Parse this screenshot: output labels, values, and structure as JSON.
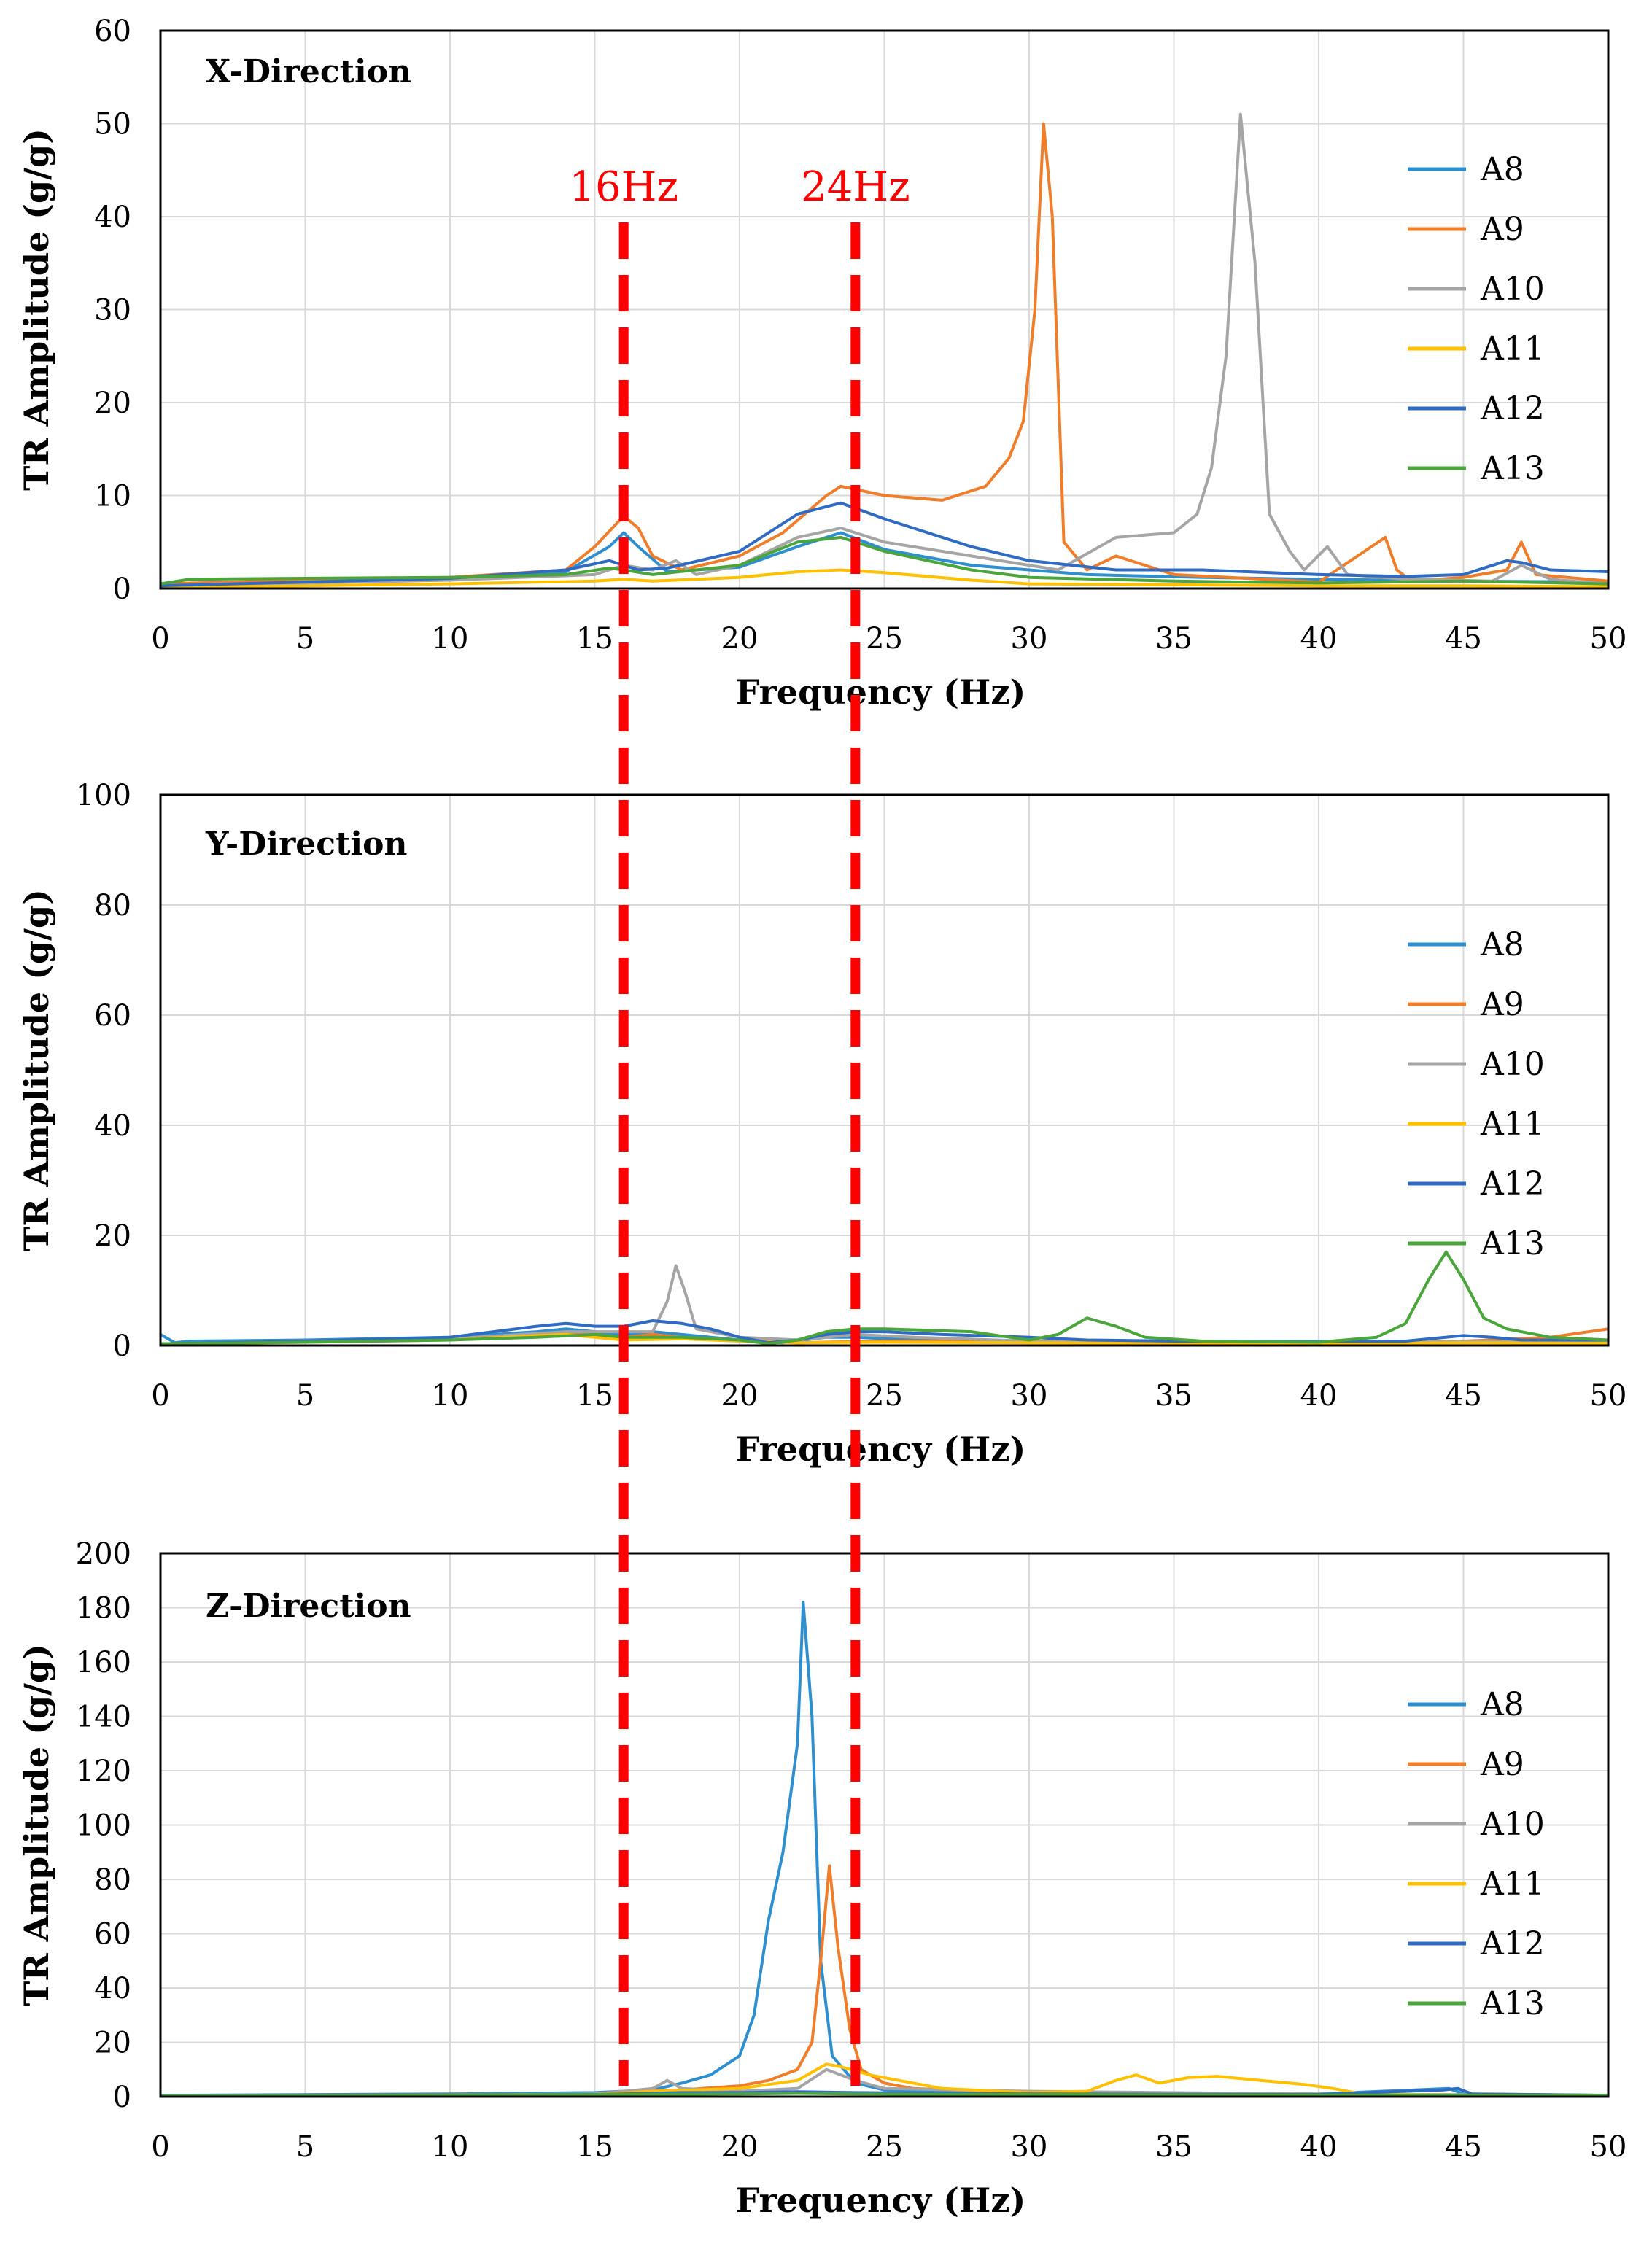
{
  "colors": {
    "A8": "#2e8fd0",
    "A9": "#f07d2a",
    "A10": "#a5a5a5",
    "A11": "#ffc000",
    "A12": "#2f6bc3",
    "A13": "#4aa53a",
    "marker": "#ff0000",
    "grid": "#d9d9d9"
  },
  "markers": [
    {
      "x": 16,
      "label": "16Hz"
    },
    {
      "x": 24,
      "label": "24Hz"
    }
  ],
  "chart_data": [
    {
      "type": "line",
      "title": "X-Direction",
      "xlabel": "Frequency (Hz)",
      "ylabel": "TR Amplitude (g/g)",
      "xlim": [
        0,
        50
      ],
      "ylim": [
        0,
        60
      ],
      "xticks": [
        0,
        5,
        10,
        15,
        20,
        25,
        30,
        35,
        40,
        45,
        50
      ],
      "yticks": [
        0,
        10,
        20,
        30,
        40,
        50,
        60
      ],
      "grid": true,
      "legend": "right",
      "series": [
        {
          "name": "A8",
          "x": [
            0,
            5,
            10,
            14,
            15.5,
            16,
            16.5,
            17.5,
            20,
            22,
            23.5,
            25,
            28,
            32,
            36,
            40,
            45,
            50
          ],
          "y": [
            0.2,
            0.6,
            1.0,
            1.8,
            4.5,
            6,
            4.5,
            1.8,
            2.3,
            4.5,
            6,
            4.2,
            2.5,
            1.5,
            1.2,
            1.0,
            0.8,
            0.7
          ]
        },
        {
          "name": "A9",
          "x": [
            0,
            5,
            10,
            14,
            15,
            16,
            16.5,
            17,
            18,
            20,
            21.5,
            23,
            23.5,
            25,
            27,
            28.5,
            29.3,
            29.8,
            30.2,
            30.5,
            30.8,
            31.2,
            32,
            33,
            35,
            40,
            42.3,
            42.7,
            43.2,
            45,
            46.5,
            47,
            47.5,
            50
          ],
          "y": [
            0.5,
            0.9,
            1.2,
            2.0,
            4.5,
            7.8,
            6.5,
            3.5,
            2.0,
            3.5,
            6.0,
            10.0,
            11.0,
            10.0,
            9.5,
            11.0,
            14.0,
            18.0,
            30.0,
            50.0,
            40.0,
            5.0,
            2.0,
            3.5,
            1.5,
            0.7,
            5.5,
            2.0,
            0.8,
            1.2,
            2.0,
            5.0,
            1.5,
            0.8
          ]
        },
        {
          "name": "A10",
          "x": [
            0,
            5,
            10,
            15,
            16,
            17,
            17.8,
            18.5,
            20,
            22,
            23.5,
            25,
            28,
            31,
            33,
            35,
            35.8,
            36.3,
            36.8,
            37.3,
            37.8,
            38.3,
            39,
            39.5,
            40.3,
            41,
            43,
            46,
            47,
            48,
            50
          ],
          "y": [
            0.3,
            0.6,
            0.9,
            1.5,
            2.5,
            2.0,
            3.0,
            1.5,
            2.5,
            5.5,
            6.5,
            5.0,
            3.5,
            2.0,
            5.5,
            6.0,
            8.0,
            13.0,
            25.0,
            51.0,
            35.0,
            8.0,
            4.0,
            2.0,
            4.5,
            1.5,
            1.0,
            0.8,
            2.5,
            1.0,
            0.5
          ]
        },
        {
          "name": "A11",
          "x": [
            0,
            5,
            10,
            15,
            16,
            17,
            20,
            22,
            23.5,
            25,
            28,
            30,
            35,
            40,
            45,
            50
          ],
          "y": [
            0.1,
            0.3,
            0.5,
            0.8,
            1.0,
            0.8,
            1.2,
            1.8,
            2.0,
            1.7,
            0.9,
            0.5,
            0.4,
            0.3,
            0.3,
            0.2
          ]
        },
        {
          "name": "A12",
          "x": [
            0,
            5,
            10,
            14,
            15.5,
            16,
            16.5,
            17.5,
            20,
            22,
            23.5,
            25,
            28,
            30,
            33,
            36,
            40,
            43,
            45,
            46.5,
            47,
            48,
            50
          ],
          "y": [
            0.3,
            0.7,
            1.1,
            2.0,
            3.0,
            2.5,
            2.0,
            2.2,
            4.0,
            8.0,
            9.2,
            7.5,
            4.5,
            3.0,
            2.0,
            2.0,
            1.5,
            1.3,
            1.5,
            3.0,
            2.8,
            2.0,
            1.8
          ]
        },
        {
          "name": "A13",
          "x": [
            0,
            1,
            5,
            10,
            14,
            15.5,
            16,
            17,
            20,
            22,
            23.5,
            25,
            28,
            30,
            35,
            40,
            45,
            50
          ],
          "y": [
            0.5,
            1.0,
            1.1,
            1.2,
            1.5,
            2.2,
            2.0,
            1.5,
            2.5,
            5.0,
            5.5,
            4.0,
            2.0,
            1.2,
            0.8,
            0.6,
            0.8,
            0.5
          ]
        }
      ]
    },
    {
      "type": "line",
      "title": "Y-Direction",
      "xlabel": "Frequency (Hz)",
      "ylabel": "TR Amplitude (g/g)",
      "xlim": [
        0,
        50
      ],
      "ylim": [
        0,
        100
      ],
      "xticks": [
        0,
        5,
        10,
        15,
        20,
        25,
        30,
        35,
        40,
        45,
        50
      ],
      "yticks": [
        0,
        20,
        40,
        60,
        80,
        100
      ],
      "grid": true,
      "legend": "right",
      "series": [
        {
          "name": "A8",
          "x": [
            0,
            0.5,
            1,
            5,
            10,
            13,
            14,
            15,
            16,
            17,
            18,
            20,
            21.5,
            23,
            24,
            26,
            30,
            35,
            40,
            45,
            50
          ],
          "y": [
            2.0,
            0.5,
            0.8,
            1.0,
            1.5,
            2.5,
            3.0,
            2.5,
            2.0,
            2.5,
            2.0,
            1.0,
            0.5,
            1.5,
            1.5,
            1.0,
            0.8,
            0.6,
            0.6,
            0.8,
            0.8
          ]
        },
        {
          "name": "A9",
          "x": [
            0,
            5,
            10,
            13,
            14,
            15,
            16,
            17,
            18,
            20,
            22,
            25,
            30,
            35,
            40,
            45,
            48,
            50
          ],
          "y": [
            0.3,
            0.8,
            1.2,
            2.0,
            2.5,
            2.0,
            1.5,
            2.0,
            1.5,
            1.0,
            0.5,
            0.8,
            0.8,
            0.6,
            0.6,
            0.8,
            1.5,
            3.0
          ]
        },
        {
          "name": "A10",
          "x": [
            0,
            5,
            10,
            14,
            16,
            17,
            17.5,
            17.8,
            18.1,
            18.5,
            20,
            22,
            24,
            26,
            30,
            35,
            40,
            45,
            50
          ],
          "y": [
            0.3,
            0.8,
            1.2,
            2.5,
            2.5,
            2.5,
            8.0,
            14.5,
            10.0,
            3.0,
            1.5,
            1.0,
            2.0,
            1.5,
            0.8,
            0.6,
            0.6,
            0.8,
            0.6
          ]
        },
        {
          "name": "A11",
          "x": [
            0,
            5,
            10,
            13,
            14,
            15,
            16,
            18,
            20,
            22,
            25,
            30,
            35,
            40,
            45,
            50
          ],
          "y": [
            0.2,
            0.6,
            1.0,
            1.8,
            2.0,
            1.5,
            1.0,
            1.2,
            0.8,
            0.5,
            0.6,
            0.5,
            0.4,
            0.4,
            0.5,
            0.4
          ]
        },
        {
          "name": "A12",
          "x": [
            0,
            5,
            10,
            13,
            14,
            15,
            16,
            17,
            18,
            19,
            20,
            21,
            22,
            23,
            24,
            25,
            27,
            30,
            32,
            35,
            40,
            43,
            45,
            46,
            47,
            50
          ],
          "y": [
            0.3,
            0.8,
            1.5,
            3.5,
            4.0,
            3.5,
            3.5,
            4.5,
            4.0,
            3.0,
            1.5,
            0.5,
            1.0,
            2.0,
            2.5,
            2.5,
            2.0,
            1.5,
            1.0,
            0.8,
            0.8,
            0.8,
            1.8,
            1.5,
            1.0,
            1.0
          ]
        },
        {
          "name": "A13",
          "x": [
            0,
            5,
            10,
            13,
            15,
            16,
            18,
            20,
            21,
            22,
            23,
            24,
            25,
            28,
            30,
            31,
            32,
            33,
            34,
            36,
            40,
            42,
            43,
            43.8,
            44.4,
            45,
            45.7,
            46.5,
            48,
            50
          ],
          "y": [
            0.3,
            0.6,
            1.0,
            1.5,
            2.0,
            1.5,
            1.5,
            1.0,
            0.3,
            1.0,
            2.5,
            3.0,
            3.0,
            2.5,
            1.0,
            2.0,
            5.0,
            3.5,
            1.5,
            0.8,
            0.6,
            1.5,
            4.0,
            12.0,
            17.0,
            12.0,
            5.0,
            3.0,
            1.5,
            1.0
          ]
        }
      ]
    },
    {
      "type": "line",
      "title": "Z-Direction",
      "xlabel": "Frequency (Hz)",
      "ylabel": "TR Amplitude (g/g)",
      "xlim": [
        0,
        50
      ],
      "ylim": [
        0,
        200
      ],
      "xticks": [
        0,
        5,
        10,
        15,
        20,
        25,
        30,
        35,
        40,
        45,
        50
      ],
      "yticks": [
        0,
        20,
        40,
        60,
        80,
        100,
        120,
        140,
        160,
        180,
        200
      ],
      "grid": true,
      "legend": "right",
      "series": [
        {
          "name": "A8",
          "x": [
            0,
            10,
            15,
            17,
            18,
            19,
            20,
            20.5,
            21,
            21.5,
            22,
            22.2,
            22.5,
            22.8,
            23.2,
            24,
            25,
            30,
            40,
            44.5,
            45,
            50
          ],
          "y": [
            0.5,
            1.0,
            1.5,
            2.5,
            5.0,
            8.0,
            15.0,
            30.0,
            65.0,
            90.0,
            130.0,
            182.0,
            140.0,
            50.0,
            15.0,
            5.0,
            2.5,
            1.5,
            1.0,
            3.0,
            1.0,
            0.5
          ]
        },
        {
          "name": "A9",
          "x": [
            0,
            10,
            15,
            16,
            18,
            20,
            21,
            22,
            22.5,
            22.8,
            23.1,
            23.4,
            23.8,
            24.2,
            25,
            26,
            30,
            40,
            50
          ],
          "y": [
            0.3,
            0.6,
            1.0,
            2.0,
            2.5,
            4.0,
            6.0,
            10.0,
            20.0,
            50.0,
            85.0,
            55.0,
            25.0,
            10.0,
            5.0,
            3.0,
            1.5,
            0.8,
            0.5
          ]
        },
        {
          "name": "A10",
          "x": [
            0,
            10,
            15,
            16,
            17,
            17.5,
            18,
            20,
            22,
            23,
            24,
            25,
            30,
            40,
            50
          ],
          "y": [
            0.3,
            0.5,
            1.0,
            2.0,
            3.0,
            6.0,
            3.0,
            2.0,
            3.0,
            10.0,
            6.0,
            3.0,
            2.0,
            1.0,
            0.5
          ]
        },
        {
          "name": "A11",
          "x": [
            0,
            10,
            15,
            17,
            20,
            22,
            23,
            23.5,
            24.5,
            25.5,
            27,
            30,
            32,
            33,
            33.7,
            34.5,
            35.5,
            36.5,
            38,
            39.5,
            40.5,
            41.5,
            45,
            50
          ],
          "y": [
            0.2,
            0.4,
            0.8,
            2.0,
            3.0,
            6.0,
            12.0,
            11.0,
            8.0,
            6.0,
            3.0,
            1.5,
            2.0,
            6.0,
            8.0,
            5.0,
            7.0,
            7.5,
            6.0,
            4.5,
            3.0,
            1.0,
            0.5,
            0.3
          ]
        },
        {
          "name": "A12",
          "x": [
            0,
            10,
            15,
            16,
            18,
            20,
            22,
            24,
            30,
            40,
            44.3,
            44.8,
            45.3,
            50
          ],
          "y": [
            0.3,
            0.5,
            0.8,
            1.0,
            1.5,
            1.5,
            1.8,
            1.5,
            1.0,
            0.8,
            2.5,
            3.0,
            1.0,
            0.5
          ]
        },
        {
          "name": "A13",
          "x": [
            0,
            10,
            15,
            20,
            22,
            24,
            30,
            40,
            50
          ],
          "y": [
            0.3,
            0.5,
            0.8,
            1.0,
            1.2,
            1.0,
            0.8,
            0.6,
            0.5
          ]
        }
      ]
    }
  ]
}
